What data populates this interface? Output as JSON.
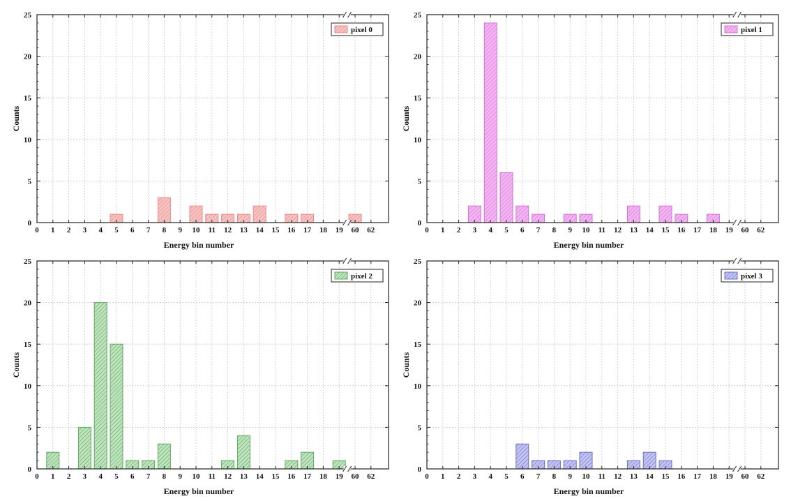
{
  "chart_data": [
    {
      "type": "bar",
      "xlabel": "Energy bin number",
      "ylabel": "Counts",
      "ylim": [
        0,
        25
      ],
      "y_ticks": [
        "0",
        "5",
        "10",
        "15",
        "20",
        "25"
      ],
      "x_ticks": [
        "0",
        "1",
        "2",
        "3",
        "4",
        "5",
        "6",
        "7",
        "8",
        "9",
        "10",
        "11",
        "12",
        "13",
        "14",
        "15",
        "16",
        "17",
        "18",
        "19",
        "60",
        "62"
      ],
      "axis_break": "between 19 and 60",
      "grid": true,
      "legend_position": "top-right",
      "series": [
        {
          "name": "pixel 0",
          "color": "#e98a88",
          "fill": "#f6c3c1"
        }
      ],
      "bins": [
        5,
        8,
        10,
        11,
        12,
        13,
        14,
        16,
        17,
        60
      ],
      "values": [
        1,
        3,
        2,
        1,
        1,
        1,
        2,
        1,
        1,
        1
      ]
    },
    {
      "type": "bar",
      "xlabel": "Energy bin number",
      "ylabel": "Counts",
      "ylim": [
        0,
        25
      ],
      "y_ticks": [
        "0",
        "5",
        "10",
        "15",
        "20",
        "25"
      ],
      "x_ticks": [
        "0",
        "1",
        "2",
        "3",
        "4",
        "5",
        "6",
        "7",
        "8",
        "9",
        "10",
        "11",
        "12",
        "13",
        "14",
        "15",
        "16",
        "17",
        "18",
        "19",
        "60",
        "62"
      ],
      "axis_break": "between 19 and 60",
      "grid": true,
      "legend_position": "top-right",
      "series": [
        {
          "name": "pixel 1",
          "color": "#d86fd8",
          "fill": "#f2b6f2"
        }
      ],
      "bins": [
        3,
        4,
        5,
        6,
        7,
        9,
        10,
        13,
        15,
        16,
        18
      ],
      "values": [
        2,
        24,
        6,
        2,
        1,
        1,
        1,
        2,
        2,
        1,
        1
      ]
    },
    {
      "type": "bar",
      "xlabel": "Energy bin number",
      "ylabel": "Counts",
      "ylim": [
        0,
        25
      ],
      "y_ticks": [
        "0",
        "5",
        "10",
        "15",
        "20",
        "25"
      ],
      "x_ticks": [
        "0",
        "1",
        "2",
        "3",
        "4",
        "5",
        "6",
        "7",
        "8",
        "9",
        "10",
        "11",
        "12",
        "13",
        "14",
        "15",
        "16",
        "17",
        "18",
        "19",
        "60",
        "62"
      ],
      "axis_break": "between 19 and 60",
      "grid": true,
      "legend_position": "top-right",
      "series": [
        {
          "name": "pixel 2",
          "color": "#5faa5f",
          "fill": "#bfe3bf"
        }
      ],
      "bins": [
        1,
        3,
        4,
        5,
        6,
        7,
        8,
        12,
        13,
        16,
        17,
        19
      ],
      "values": [
        2,
        5,
        20,
        15,
        1,
        1,
        3,
        1,
        4,
        1,
        2,
        1
      ]
    },
    {
      "type": "bar",
      "xlabel": "Energy bin number",
      "ylabel": "Counts",
      "ylim": [
        0,
        25
      ],
      "y_ticks": [
        "0",
        "5",
        "10",
        "15",
        "20",
        "25"
      ],
      "x_ticks": [
        "0",
        "1",
        "2",
        "3",
        "4",
        "5",
        "6",
        "7",
        "8",
        "9",
        "10",
        "11",
        "12",
        "13",
        "14",
        "15",
        "16",
        "17",
        "18",
        "19",
        "60",
        "62"
      ],
      "axis_break": "between 19 and 60",
      "grid": true,
      "legend_position": "top-right",
      "series": [
        {
          "name": "pixel 3",
          "color": "#6f6fcf",
          "fill": "#c4c4f0"
        }
      ],
      "bins": [
        6,
        7,
        8,
        9,
        10,
        13,
        14,
        15
      ],
      "values": [
        3,
        1,
        1,
        1,
        2,
        1,
        2,
        1
      ]
    }
  ]
}
